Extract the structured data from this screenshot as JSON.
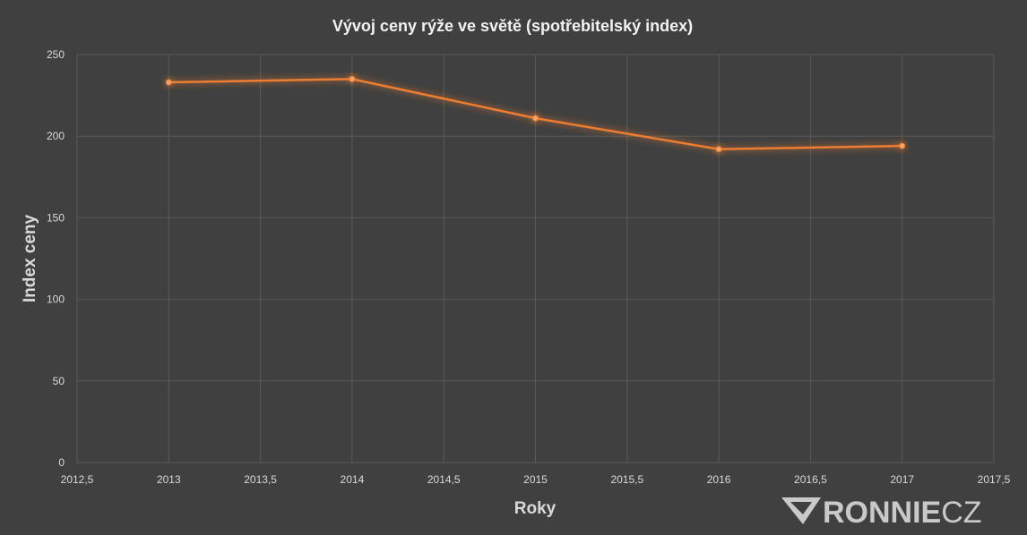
{
  "chart_data": {
    "type": "scatter",
    "mode": "lines+markers",
    "title": "Vývoj ceny rýže ve světě (spotřebitelský index)",
    "xlabel": "Roky",
    "ylabel": "Index ceny",
    "xlim": [
      2012.5,
      2017.5
    ],
    "ylim": [
      0,
      250
    ],
    "x_ticks": [
      "2012,5",
      "2013",
      "2013,5",
      "2014",
      "2014,5",
      "2015",
      "2015,5",
      "2016",
      "2016,5",
      "2017",
      "2017,5"
    ],
    "y_ticks": [
      "0",
      "50",
      "100",
      "150",
      "200",
      "250"
    ],
    "grid": true,
    "legend": "none",
    "series": [
      {
        "x": [
          2013,
          2014,
          2015,
          2016,
          2017
        ],
        "y": [
          233,
          235,
          211,
          192,
          194
        ]
      }
    ]
  },
  "colors": {
    "background": "#404040",
    "series": "#ed7d31",
    "grid": "#5a5a5a",
    "text": "#d9d9d9"
  },
  "watermark": {
    "icon": "ronnie-logo-icon",
    "text_bold": "RONNIE",
    "text_light": "CZ"
  }
}
